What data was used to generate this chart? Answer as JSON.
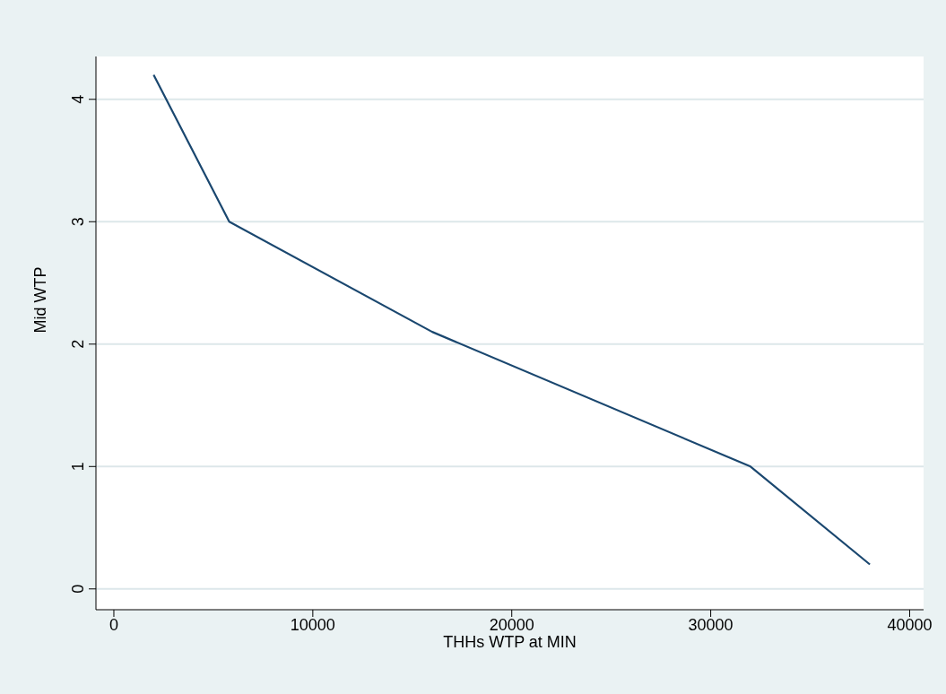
{
  "chart_data": {
    "type": "line",
    "xlabel": "THHs WTP at MIN",
    "ylabel": "Mid WTP",
    "x": [
      2000,
      5800,
      16000,
      32000,
      38000
    ],
    "series": [
      {
        "color": "#1a476f",
        "values": [
          4.2,
          3.0,
          2.1,
          1.0,
          0.2
        ]
      }
    ],
    "xlim": [
      -900,
      40700
    ],
    "xticks": [
      0,
      10000,
      20000,
      30000,
      40000
    ],
    "ylim": [
      -0.17,
      4.35
    ],
    "yticks": [
      0,
      1,
      2,
      3,
      4
    ],
    "grid": "y",
    "marker": "none",
    "line_style": "solid",
    "legend": false
  }
}
